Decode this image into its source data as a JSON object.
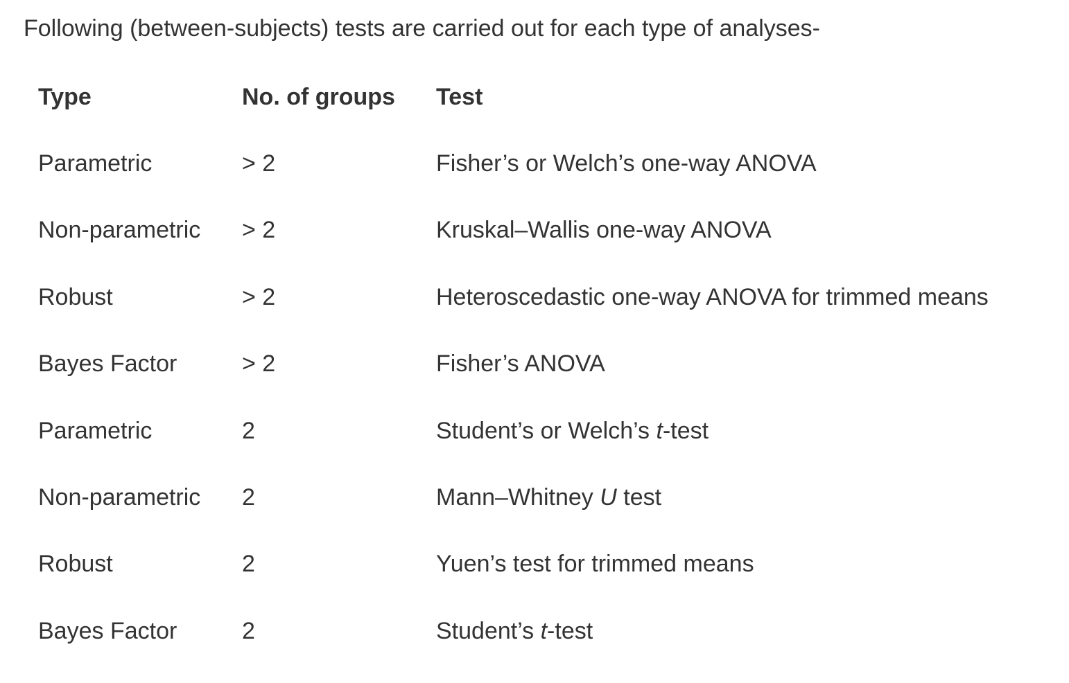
{
  "intro": "Following (between-subjects) tests are carried out for each type of analyses-",
  "table": {
    "headers": [
      "Type",
      "No. of groups",
      "Test"
    ],
    "rows": [
      {
        "type": "Parametric",
        "groups": "> 2",
        "test": [
          {
            "text": "Fisher’s or Welch’s one-way ANOVA"
          }
        ]
      },
      {
        "type": "Non-parametric",
        "groups": "> 2",
        "test": [
          {
            "text": "Kruskal–Wallis one-way ANOVA"
          }
        ]
      },
      {
        "type": "Robust",
        "groups": "> 2",
        "test": [
          {
            "text": "Heteroscedastic one-way ANOVA for trimmed means"
          }
        ]
      },
      {
        "type": "Bayes Factor",
        "groups": "> 2",
        "test": [
          {
            "text": "Fisher’s ANOVA"
          }
        ]
      },
      {
        "type": "Parametric",
        "groups": "2",
        "test": [
          {
            "text": "Student’s or Welch’s "
          },
          {
            "text": "t",
            "italic": true
          },
          {
            "text": "-test"
          }
        ]
      },
      {
        "type": "Non-parametric",
        "groups": "2",
        "test": [
          {
            "text": "Mann–Whitney "
          },
          {
            "text": "U",
            "italic": true
          },
          {
            "text": " test"
          }
        ]
      },
      {
        "type": "Robust",
        "groups": "2",
        "test": [
          {
            "text": "Yuen’s test for trimmed means"
          }
        ]
      },
      {
        "type": "Bayes Factor",
        "groups": "2",
        "test": [
          {
            "text": "Student’s "
          },
          {
            "text": "t",
            "italic": true
          },
          {
            "text": "-test"
          }
        ]
      }
    ]
  },
  "colors": {
    "text": "#333333",
    "background": "#ffffff"
  }
}
